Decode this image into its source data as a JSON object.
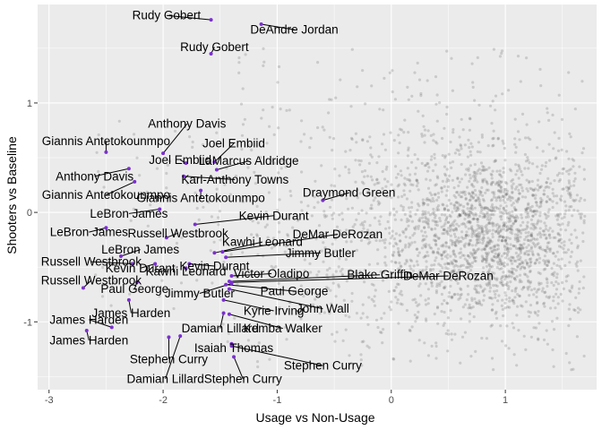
{
  "chart_data": {
    "type": "scatter",
    "title": "",
    "xlabel": "Usage vs Non-Usage",
    "ylabel": "Shooters vs Baseline",
    "xlim": [
      -3.1,
      1.8
    ],
    "ylim": [
      -1.62,
      1.9
    ],
    "x_ticks": [
      -3,
      -2,
      -1,
      0,
      1
    ],
    "x_tick_labels": [
      "-3",
      "-2",
      "-1",
      "0",
      "1"
    ],
    "y_ticks": [
      -1,
      0,
      1
    ],
    "y_tick_labels": [
      "-1",
      "0",
      "1"
    ],
    "grid": true,
    "background_color": "#ebebeb",
    "grid_color": "#ffffff",
    "highlight_color": "#7b2fd0",
    "point_color": "#555555",
    "background_points": {
      "description": "dense cloud of many faint gray points",
      "x_range": [
        -2.6,
        1.7
      ],
      "y_range": [
        -1.45,
        1.5
      ],
      "center": [
        0.9,
        -0.2
      ]
    },
    "labeled_points": [
      {
        "name": "Rudy Gobert",
        "x": -1.58,
        "y": 1.76,
        "lx": -1.97,
        "ly": 1.8
      },
      {
        "name": "DeAndre Jordan",
        "x": -1.14,
        "y": 1.72,
        "lx": -0.85,
        "ly": 1.67
      },
      {
        "name": "Rudy Gobert",
        "x": -1.58,
        "y": 1.45,
        "lx": -1.55,
        "ly": 1.51
      },
      {
        "name": "Anthony Davis",
        "x": -2.0,
        "y": 0.54,
        "lx": -1.79,
        "ly": 0.81
      },
      {
        "name": "Giannis Antetokounmpo",
        "x": -2.5,
        "y": 0.55,
        "lx": -2.5,
        "ly": 0.65
      },
      {
        "name": "Joel Embiid",
        "x": -1.55,
        "y": 0.46,
        "lx": -1.38,
        "ly": 0.63
      },
      {
        "name": "Joel Embiid",
        "x": -1.8,
        "y": 0.45,
        "lx": -1.85,
        "ly": 0.48
      },
      {
        "name": "LaMarcus Aldridge",
        "x": -1.53,
        "y": 0.39,
        "lx": -1.25,
        "ly": 0.47
      },
      {
        "name": "Anthony Davis",
        "x": -2.3,
        "y": 0.4,
        "lx": -2.6,
        "ly": 0.33
      },
      {
        "name": "Karl-Anthony Towns",
        "x": -1.82,
        "y": 0.33,
        "lx": -1.37,
        "ly": 0.3
      },
      {
        "name": "Giannis Antetokounmpo",
        "x": -2.25,
        "y": 0.28,
        "lx": -2.5,
        "ly": 0.16
      },
      {
        "name": "Draymond Green",
        "x": -0.6,
        "y": 0.11,
        "lx": -0.37,
        "ly": 0.18
      },
      {
        "name": "Giannis Antetokounmpo",
        "x": -1.67,
        "y": 0.2,
        "lx": -1.67,
        "ly": 0.13
      },
      {
        "name": "LeBron James",
        "x": -2.03,
        "y": 0.03,
        "lx": -2.3,
        "ly": -0.01
      },
      {
        "name": "Kevin Durant",
        "x": -1.72,
        "y": -0.11,
        "lx": -1.03,
        "ly": -0.03
      },
      {
        "name": "LeBron James",
        "x": -2.5,
        "y": -0.14,
        "lx": -2.65,
        "ly": -0.18
      },
      {
        "name": "Russell Westbrook",
        "x": -1.97,
        "y": -0.23,
        "lx": -1.87,
        "ly": -0.19
      },
      {
        "name": "DeMar DeRozan",
        "x": -1.48,
        "y": -0.36,
        "lx": -0.47,
        "ly": -0.2
      },
      {
        "name": "Kawhi Leonard",
        "x": -1.55,
        "y": -0.37,
        "lx": -1.13,
        "ly": -0.27
      },
      {
        "name": "LeBron James",
        "x": -2.37,
        "y": -0.4,
        "lx": -2.2,
        "ly": -0.34
      },
      {
        "name": "Jimmy Butler",
        "x": -1.45,
        "y": -0.41,
        "lx": -0.62,
        "ly": -0.37
      },
      {
        "name": "Russell Westbrook",
        "x": -2.27,
        "y": -0.47,
        "lx": -2.63,
        "ly": -0.45
      },
      {
        "name": "Kevin Durant",
        "x": -2.07,
        "y": -0.47,
        "lx": -2.2,
        "ly": -0.51
      },
      {
        "name": "Kevin Durant",
        "x": -1.77,
        "y": -0.47,
        "lx": -1.55,
        "ly": -0.49
      },
      {
        "name": "Kawhi Leonard",
        "x": -1.8,
        "y": -0.51,
        "lx": -1.8,
        "ly": -0.54
      },
      {
        "name": "Victor Oladipo",
        "x": -1.4,
        "y": -0.58,
        "lx": -1.05,
        "ly": -0.56
      },
      {
        "name": "Blake Griffin",
        "x": -1.42,
        "y": -0.63,
        "lx": -0.1,
        "ly": -0.57
      },
      {
        "name": "DeMar DeRozan",
        "x": -1.4,
        "y": -0.64,
        "lx": 0.5,
        "ly": -0.58
      },
      {
        "name": "Russell Westbrook",
        "x": -2.7,
        "y": -0.69,
        "lx": -2.63,
        "ly": -0.62
      },
      {
        "name": "Paul George",
        "x": -2.23,
        "y": -0.64,
        "lx": -2.25,
        "ly": -0.7
      },
      {
        "name": "Jimmy Butler",
        "x": -1.4,
        "y": -0.65,
        "lx": -1.68,
        "ly": -0.74
      },
      {
        "name": "Paul George",
        "x": -1.45,
        "y": -0.66,
        "lx": -0.85,
        "ly": -0.72
      },
      {
        "name": "John Wall",
        "x": -1.42,
        "y": -0.7,
        "lx": -0.6,
        "ly": -0.88
      },
      {
        "name": "James Harden",
        "x": -2.3,
        "y": -0.8,
        "lx": -2.28,
        "ly": -0.92
      },
      {
        "name": "Kyrie Irving",
        "x": -1.47,
        "y": -0.8,
        "lx": -1.03,
        "ly": -0.9
      },
      {
        "name": "James Harden",
        "x": -2.45,
        "y": -1.05,
        "lx": -2.65,
        "ly": -0.98
      },
      {
        "name": "Damian Lillard",
        "x": -1.47,
        "y": -0.92,
        "lx": -1.5,
        "ly": -1.06
      },
      {
        "name": "Kemba Walker",
        "x": -1.42,
        "y": -0.93,
        "lx": -0.95,
        "ly": -1.06
      },
      {
        "name": "James Harden",
        "x": -2.67,
        "y": -1.08,
        "lx": -2.65,
        "ly": -1.17
      },
      {
        "name": "Isaiah Thomas",
        "x": -1.4,
        "y": -1.2,
        "lx": -1.38,
        "ly": -1.24
      },
      {
        "name": "Stephen Curry",
        "x": -1.95,
        "y": -1.14,
        "lx": -1.95,
        "ly": -1.34
      },
      {
        "name": "Stephen Curry",
        "x": -1.4,
        "y": -1.22,
        "lx": -0.6,
        "ly": -1.4
      },
      {
        "name": "Damian Lillard",
        "x": -1.85,
        "y": -1.13,
        "lx": -1.98,
        "ly": -1.52
      },
      {
        "name": "Stephen Curry",
        "x": -1.38,
        "y": -1.32,
        "lx": -1.3,
        "ly": -1.52
      }
    ]
  }
}
